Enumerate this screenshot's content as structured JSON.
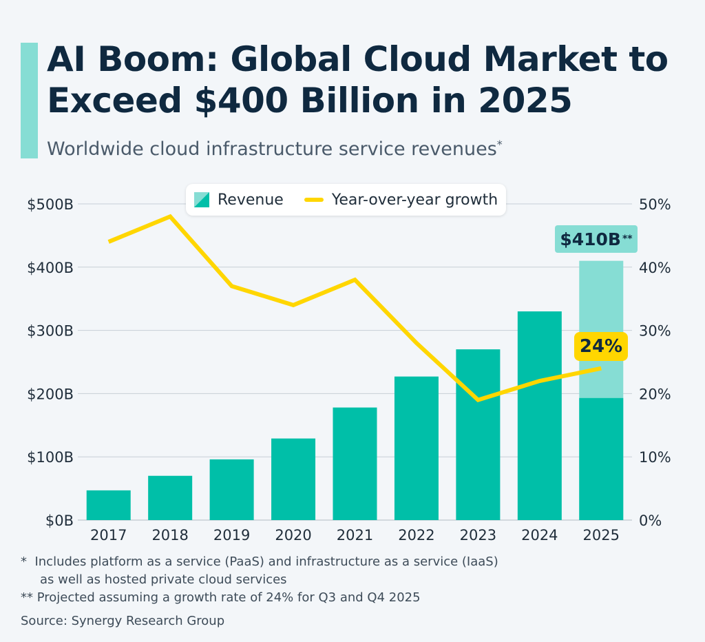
{
  "title": "AI Boom: Global Cloud Market to Exceed $400 Billion in 2025",
  "subtitle": "Worldwide cloud infrastructure service revenues",
  "subtitle_marker": "*",
  "legend": {
    "revenue_label": "Revenue",
    "growth_label": "Year-over-year growth"
  },
  "callouts": {
    "total": "$410B",
    "total_marker": "**",
    "growth": "24%"
  },
  "footnotes": {
    "note1_marker": "*",
    "note1_line1": "Includes platform as a service (PaaS) and infrastructure as a service (IaaS)",
    "note1_line2": "as well as hosted private cloud services",
    "note2": "** Projected assuming a growth rate of 24% for Q3 and Q4 2025",
    "source": "Source: Synergy Research Group"
  },
  "colors": {
    "accent": "#86ddd4",
    "revenue": "#00bfa8",
    "projected": "#86ddd4",
    "growth_line": "#ffd600",
    "grid": "#c7ced6",
    "axis_text": "#1f2d3a"
  },
  "chart_data": {
    "type": "bar",
    "categories": [
      "2017",
      "2018",
      "2019",
      "2020",
      "2021",
      "2022",
      "2023",
      "2024",
      "2025"
    ],
    "series": [
      {
        "name": "Revenue",
        "axis": "left",
        "values": [
          47,
          70,
          96,
          129,
          178,
          227,
          270,
          330,
          193
        ],
        "projected_total_2025": 410
      },
      {
        "name": "Year-over-year growth",
        "type": "line",
        "axis": "right",
        "values": [
          44,
          48,
          37,
          34,
          38,
          28,
          19,
          22,
          24
        ]
      }
    ],
    "y_left": {
      "ticks": [
        "$0B",
        "$100B",
        "$200B",
        "$300B",
        "$400B",
        "$500B"
      ],
      "ylim": [
        0,
        500
      ]
    },
    "y_right": {
      "ticks": [
        "0%",
        "10%",
        "20%",
        "30%",
        "40%",
        "50%"
      ],
      "ylim": [
        0,
        50
      ]
    },
    "legend": "top-center",
    "grid": true
  }
}
